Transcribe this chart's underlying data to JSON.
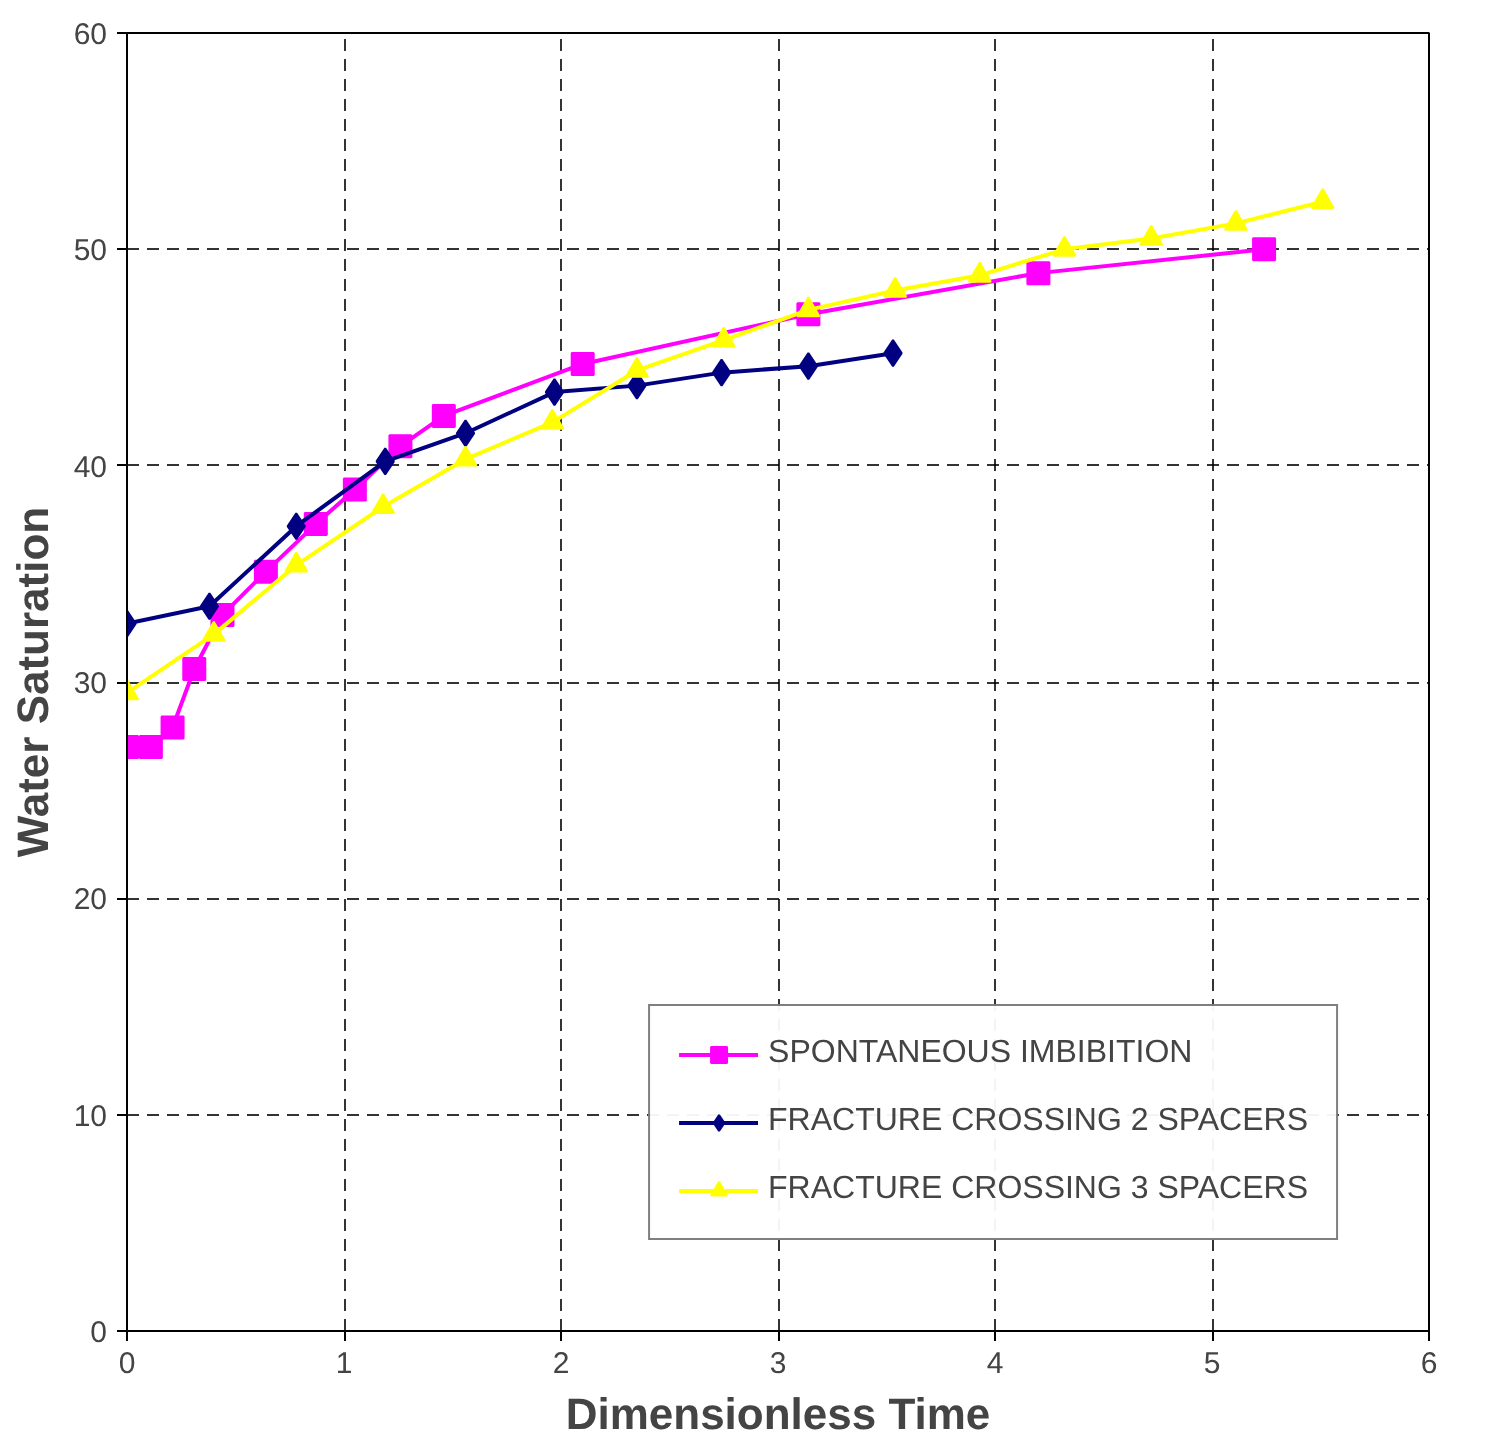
{
  "chart_data": {
    "type": "line",
    "xlabel": "Dimensionless Time",
    "ylabel": "Water Saturation",
    "xlim": [
      0,
      6
    ],
    "ylim": [
      0,
      60
    ],
    "xticks": [
      0,
      1,
      2,
      3,
      4,
      5,
      6
    ],
    "yticks": [
      0,
      10,
      20,
      30,
      40,
      50,
      60
    ],
    "grid": true,
    "legend": "bottom right",
    "line_style": "solid",
    "series": [
      {
        "name": "SPONTANEOUS IMBIBITION",
        "color": "#ff00ff",
        "marker": "square",
        "x": [
          0,
          0.11,
          0.21,
          0.31,
          0.44,
          0.64,
          0.87,
          1.05,
          1.26,
          1.46,
          2.1,
          3.14,
          4.2,
          5.24
        ],
        "values": [
          27.0,
          27.0,
          27.9,
          30.6,
          33.1,
          35.1,
          37.3,
          38.9,
          40.9,
          42.3,
          44.7,
          47.0,
          48.9,
          50.0
        ]
      },
      {
        "name": "FRACTURE CROSSING 2 SPACERS",
        "color": "#000080",
        "marker": "diamond",
        "x": [
          0,
          0.38,
          0.78,
          1.19,
          1.56,
          1.97,
          2.35,
          2.74,
          3.14,
          3.53
        ],
        "values": [
          32.7,
          33.5,
          37.2,
          40.2,
          41.5,
          43.4,
          43.7,
          44.3,
          44.6,
          45.2
        ]
      },
      {
        "name": "FRACTURE CROSSING 3 SPACERS",
        "color": "#ffff00",
        "marker": "triangle",
        "x": [
          0,
          0.4,
          0.78,
          1.18,
          1.56,
          1.96,
          2.35,
          2.75,
          3.14,
          3.54,
          3.93,
          4.32,
          4.72,
          5.11,
          5.51
        ],
        "values": [
          29.5,
          32.2,
          35.4,
          38.1,
          40.3,
          42.0,
          44.4,
          45.8,
          47.2,
          48.1,
          48.8,
          50.0,
          50.5,
          51.2,
          52.2
        ]
      }
    ]
  }
}
